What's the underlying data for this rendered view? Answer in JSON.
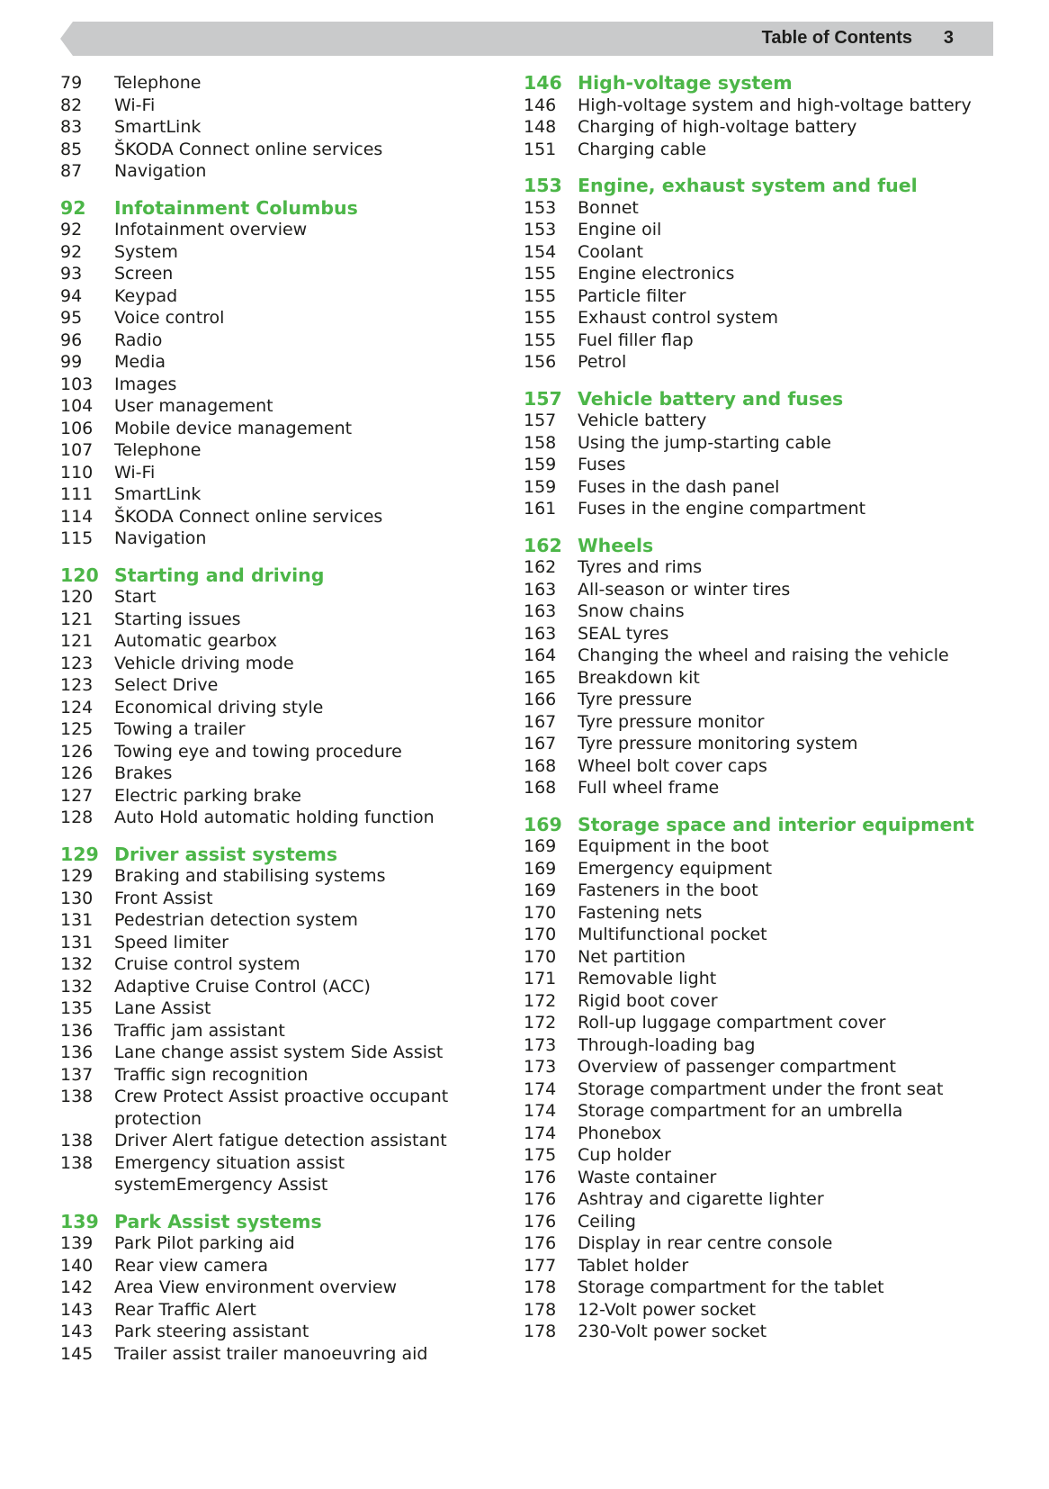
{
  "header": {
    "title": "Table of Contents",
    "page_number": "3"
  },
  "colors": {
    "accent": "#4cb648",
    "header_bar": "#c9cacb",
    "text": "#1d1d1b"
  },
  "left_column": [
    {
      "type": "item",
      "page": "79",
      "title": "Telephone"
    },
    {
      "type": "item",
      "page": "82",
      "title": "Wi-Fi"
    },
    {
      "type": "item",
      "page": "83",
      "title": "SmartLink"
    },
    {
      "type": "item",
      "page": "85",
      "title": "ŠKODA Connect online services"
    },
    {
      "type": "item",
      "page": "87",
      "title": "Navigation"
    },
    {
      "type": "heading",
      "page": "92",
      "title": "Infotainment Columbus"
    },
    {
      "type": "item",
      "page": "92",
      "title": "Infotainment overview"
    },
    {
      "type": "item",
      "page": "92",
      "title": "System"
    },
    {
      "type": "item",
      "page": "93",
      "title": "Screen"
    },
    {
      "type": "item",
      "page": "94",
      "title": "Keypad"
    },
    {
      "type": "item",
      "page": "95",
      "title": "Voice control"
    },
    {
      "type": "item",
      "page": "96",
      "title": "Radio"
    },
    {
      "type": "item",
      "page": "99",
      "title": "Media"
    },
    {
      "type": "item",
      "page": "103",
      "title": "Images"
    },
    {
      "type": "item",
      "page": "104",
      "title": "User management"
    },
    {
      "type": "item",
      "page": "106",
      "title": "Mobile device management"
    },
    {
      "type": "item",
      "page": "107",
      "title": "Telephone"
    },
    {
      "type": "item",
      "page": "110",
      "title": "Wi-Fi"
    },
    {
      "type": "item",
      "page": "111",
      "title": "SmartLink"
    },
    {
      "type": "item",
      "page": "114",
      "title": "ŠKODA Connect online services"
    },
    {
      "type": "item",
      "page": "115",
      "title": "Navigation"
    },
    {
      "type": "heading",
      "page": "120",
      "title": "Starting and driving"
    },
    {
      "type": "item",
      "page": "120",
      "title": "Start"
    },
    {
      "type": "item",
      "page": "121",
      "title": "Starting issues"
    },
    {
      "type": "item",
      "page": "121",
      "title": "Automatic gearbox"
    },
    {
      "type": "item",
      "page": "123",
      "title": "Vehicle driving mode"
    },
    {
      "type": "item",
      "page": "123",
      "title": "Select Drive"
    },
    {
      "type": "item",
      "page": "124",
      "title": "Economical driving style"
    },
    {
      "type": "item",
      "page": "125",
      "title": "Towing a trailer"
    },
    {
      "type": "item",
      "page": "126",
      "title": "Towing eye and towing procedure"
    },
    {
      "type": "item",
      "page": "126",
      "title": "Brakes"
    },
    {
      "type": "item",
      "page": "127",
      "title": "Electric parking brake"
    },
    {
      "type": "item",
      "page": "128",
      "title": "Auto Hold automatic holding function"
    },
    {
      "type": "heading",
      "page": "129",
      "title": "Driver assist systems"
    },
    {
      "type": "item",
      "page": "129",
      "title": "Braking and stabilising systems"
    },
    {
      "type": "item",
      "page": "130",
      "title": "Front Assist"
    },
    {
      "type": "item",
      "page": "131",
      "title": "Pedestrian detection system"
    },
    {
      "type": "item",
      "page": "131",
      "title": "Speed limiter"
    },
    {
      "type": "item",
      "page": "132",
      "title": "Cruise control system"
    },
    {
      "type": "item",
      "page": "132",
      "title": "Adaptive Cruise Control (ACC)"
    },
    {
      "type": "item",
      "page": "135",
      "title": "Lane Assist"
    },
    {
      "type": "item",
      "page": "136",
      "title": "Traffic jam assistant"
    },
    {
      "type": "item",
      "page": "136",
      "title": "Lane change assist system Side Assist"
    },
    {
      "type": "item",
      "page": "137",
      "title": "Traffic sign recognition"
    },
    {
      "type": "item",
      "page": "138",
      "title": "Crew Protect Assist proactive occupant protection"
    },
    {
      "type": "item",
      "page": "138",
      "title": "Driver Alert fatigue detection assistant"
    },
    {
      "type": "item",
      "page": "138",
      "title": "Emergency situation assist systemEmergency Assist"
    },
    {
      "type": "heading",
      "page": "139",
      "title": "Park Assist systems"
    },
    {
      "type": "item",
      "page": "139",
      "title": "Park Pilot parking aid"
    },
    {
      "type": "item",
      "page": "140",
      "title": "Rear view camera"
    },
    {
      "type": "item",
      "page": "142",
      "title": "Area View environment overview"
    },
    {
      "type": "item",
      "page": "143",
      "title": "Rear Traffic Alert"
    },
    {
      "type": "item",
      "page": "143",
      "title": "Park steering assistant"
    },
    {
      "type": "item",
      "page": "145",
      "title": "Trailer assist trailer manoeuvring aid"
    }
  ],
  "right_column": [
    {
      "type": "heading",
      "page": "146",
      "title": "High-voltage system"
    },
    {
      "type": "item",
      "page": "146",
      "title": "High-voltage system and high-voltage battery"
    },
    {
      "type": "item",
      "page": "148",
      "title": "Charging of high-voltage battery"
    },
    {
      "type": "item",
      "page": "151",
      "title": "Charging cable"
    },
    {
      "type": "heading",
      "page": "153",
      "title": "Engine, exhaust system and fuel"
    },
    {
      "type": "item",
      "page": "153",
      "title": "Bonnet"
    },
    {
      "type": "item",
      "page": "153",
      "title": "Engine oil"
    },
    {
      "type": "item",
      "page": "154",
      "title": "Coolant"
    },
    {
      "type": "item",
      "page": "155",
      "title": "Engine electronics"
    },
    {
      "type": "item",
      "page": "155",
      "title": "Particle filter"
    },
    {
      "type": "item",
      "page": "155",
      "title": "Exhaust control system"
    },
    {
      "type": "item",
      "page": "155",
      "title": "Fuel filler flap"
    },
    {
      "type": "item",
      "page": "156",
      "title": "Petrol"
    },
    {
      "type": "heading",
      "page": "157",
      "title": "Vehicle battery and fuses"
    },
    {
      "type": "item",
      "page": "157",
      "title": "Vehicle battery"
    },
    {
      "type": "item",
      "page": "158",
      "title": "Using the jump-starting cable"
    },
    {
      "type": "item",
      "page": "159",
      "title": "Fuses"
    },
    {
      "type": "item",
      "page": "159",
      "title": "Fuses in the dash panel"
    },
    {
      "type": "item",
      "page": "161",
      "title": "Fuses in the engine compartment"
    },
    {
      "type": "heading",
      "page": "162",
      "title": "Wheels"
    },
    {
      "type": "item",
      "page": "162",
      "title": "Tyres and rims"
    },
    {
      "type": "item",
      "page": "163",
      "title": "All-season or winter tires"
    },
    {
      "type": "item",
      "page": "163",
      "title": "Snow chains"
    },
    {
      "type": "item",
      "page": "163",
      "title": "SEAL tyres"
    },
    {
      "type": "item",
      "page": "164",
      "title": "Changing the wheel and raising the vehicle"
    },
    {
      "type": "item",
      "page": "165",
      "title": "Breakdown kit"
    },
    {
      "type": "item",
      "page": "166",
      "title": "Tyre pressure"
    },
    {
      "type": "item",
      "page": "167",
      "title": "Tyre pressure monitor"
    },
    {
      "type": "item",
      "page": "167",
      "title": "Tyre pressure monitoring system"
    },
    {
      "type": "item",
      "page": "168",
      "title": "Wheel bolt cover caps"
    },
    {
      "type": "item",
      "page": "168",
      "title": "Full wheel frame"
    },
    {
      "type": "heading",
      "page": "169",
      "title": "Storage space and interior equipment"
    },
    {
      "type": "item",
      "page": "169",
      "title": "Equipment in the boot"
    },
    {
      "type": "item",
      "page": "169",
      "title": "Emergency equipment"
    },
    {
      "type": "item",
      "page": "169",
      "title": "Fasteners in the boot"
    },
    {
      "type": "item",
      "page": "170",
      "title": "Fastening nets"
    },
    {
      "type": "item",
      "page": "170",
      "title": "Multifunctional pocket"
    },
    {
      "type": "item",
      "page": "170",
      "title": "Net partition"
    },
    {
      "type": "item",
      "page": "171",
      "title": "Removable light"
    },
    {
      "type": "item",
      "page": "172",
      "title": "Rigid boot cover"
    },
    {
      "type": "item",
      "page": "172",
      "title": "Roll-up luggage compartment cover"
    },
    {
      "type": "item",
      "page": "173",
      "title": "Through-loading bag"
    },
    {
      "type": "item",
      "page": "173",
      "title": "Overview of passenger compartment"
    },
    {
      "type": "item",
      "page": "174",
      "title": "Storage compartment under the front seat"
    },
    {
      "type": "item",
      "page": "174",
      "title": "Storage compartment for an umbrella"
    },
    {
      "type": "item",
      "page": "174",
      "title": "Phonebox"
    },
    {
      "type": "item",
      "page": "175",
      "title": "Cup holder"
    },
    {
      "type": "item",
      "page": "176",
      "title": "Waste container"
    },
    {
      "type": "item",
      "page": "176",
      "title": "Ashtray and cigarette lighter"
    },
    {
      "type": "item",
      "page": "176",
      "title": "Ceiling"
    },
    {
      "type": "item",
      "page": "176",
      "title": "Display in rear centre console"
    },
    {
      "type": "item",
      "page": "177",
      "title": "Tablet holder"
    },
    {
      "type": "item",
      "page": "178",
      "title": "Storage compartment for the tablet"
    },
    {
      "type": "item",
      "page": "178",
      "title": "12-Volt power socket"
    },
    {
      "type": "item",
      "page": "178",
      "title": "230-Volt power socket"
    }
  ]
}
